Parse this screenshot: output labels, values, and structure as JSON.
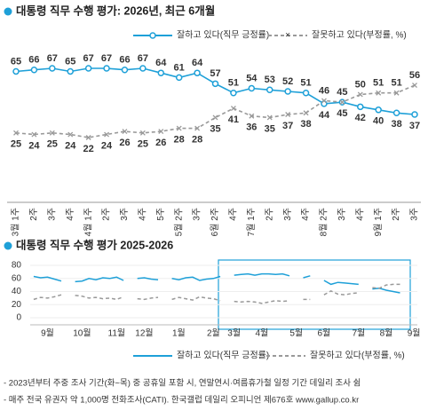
{
  "chart_data": [
    {
      "type": "line",
      "title": "대통령 직무 수행 평가: 2026년, 최근 6개월",
      "categories": [
        "3월 1주",
        "2주",
        "3주",
        "4주",
        "4월 1주",
        "2주",
        "3주",
        "4주",
        "5주",
        "5월 2주",
        "3주",
        "6월 2주",
        "4주",
        "7월 1주",
        "2주",
        "3주",
        "4주",
        "8월 2주",
        "3주",
        "4주",
        "9월 1주",
        "2주",
        "3주"
      ],
      "series": [
        {
          "name": "잘하고 있다(직무 긍정률)",
          "color": "#1ea0d8",
          "line_style": "solid",
          "marker": "circle",
          "values": [
            65,
            66,
            67,
            65,
            67,
            67,
            66,
            67,
            64,
            61,
            64,
            57,
            51,
            54,
            53,
            52,
            51,
            44,
            45,
            42,
            40,
            38,
            37
          ]
        },
        {
          "name": "잘못하고 있다(부정률, %)",
          "color": "#999999",
          "line_style": "dashed",
          "marker": "x",
          "values": [
            25,
            24,
            25,
            24,
            22,
            24,
            26,
            25,
            26,
            28,
            28,
            35,
            41,
            36,
            35,
            37,
            38,
            46,
            45,
            50,
            51,
            51,
            56
          ]
        }
      ]
    },
    {
      "type": "line",
      "title": "대통령 직무 수행 평가 2025-2026",
      "categories": [
        null,
        null,
        "9월",
        null,
        null,
        null,
        null,
        "10월",
        null,
        null,
        null,
        null,
        "11월",
        null,
        null,
        null,
        "12월",
        null,
        null,
        null,
        null,
        "1월",
        null,
        null,
        null,
        null,
        "2월",
        null,
        null,
        "3월",
        null,
        null,
        null,
        "4월",
        null,
        null,
        null,
        null,
        "5월",
        null,
        null,
        null,
        "6월",
        null,
        null,
        null,
        null,
        "7월",
        null,
        null,
        null,
        "8월",
        null,
        null,
        null,
        "9월"
      ],
      "ylim": [
        0,
        80
      ],
      "yticks": [
        0,
        20,
        40,
        60,
        80
      ],
      "grid": true,
      "series": [
        {
          "name": "잘하고 있다(직무 긍정률)",
          "color": "#1ea0d8",
          "line_style": "solid",
          "values": [
            63,
            61,
            62,
            59,
            56,
            null,
            55,
            56,
            60,
            58,
            61,
            60,
            62,
            57,
            null,
            60,
            61,
            59,
            58,
            null,
            60,
            58,
            61,
            62,
            57,
            59,
            60,
            63,
            null,
            65,
            66,
            67,
            65,
            67,
            67,
            66,
            67,
            64,
            null,
            61,
            64,
            null,
            57,
            51,
            54,
            53,
            52,
            51,
            null,
            44,
            45,
            42,
            40,
            38,
            null,
            37
          ]
        },
        {
          "name": "잘못하고 있다(부정률, %)",
          "color": "#999999",
          "line_style": "dashed",
          "values": [
            28,
            31,
            30,
            32,
            35,
            null,
            34,
            33,
            30,
            31,
            29,
            30,
            28,
            32,
            null,
            29,
            28,
            30,
            31,
            null,
            28,
            31,
            29,
            27,
            32,
            30,
            29,
            26,
            null,
            25,
            24,
            25,
            24,
            22,
            24,
            26,
            25,
            26,
            null,
            28,
            28,
            null,
            35,
            41,
            36,
            35,
            37,
            38,
            null,
            46,
            45,
            50,
            51,
            51,
            null,
            56
          ]
        }
      ]
    }
  ],
  "footnotes": [
    "- 2023년부터 주중 조사 기간(화~목) 중 공휴일 포함 시, 연말연시·여름휴가철 일정 기간 데일리 조사 쉼",
    "- 매주 전국 유권자 약 1,000명 전화조사(CATI). 한국갤럽 데일리 오피니언 제676호 www.gallup.co.kr"
  ]
}
